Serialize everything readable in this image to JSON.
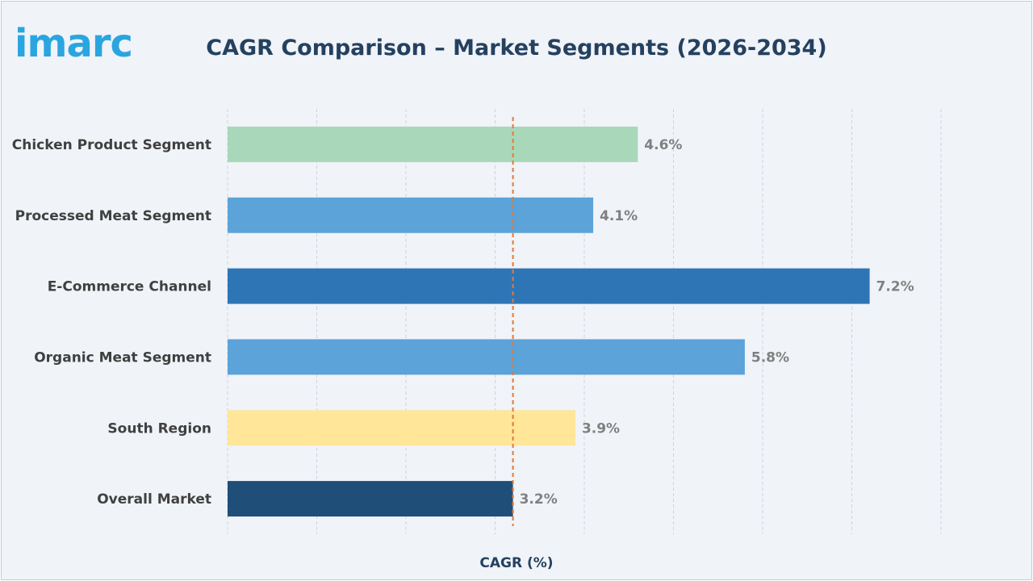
{
  "brand": {
    "logo_text": "imarc"
  },
  "chart_data": {
    "type": "bar",
    "orientation": "horizontal",
    "title": "CAGR Comparison – Market Segments (2026-2034)",
    "xlabel": "CAGR (%)",
    "ylabel": "",
    "categories": [
      "Chicken Product Segment",
      "Processed Meat Segment",
      "E-Commerce Channel",
      "Organic Meat Segment",
      "South Region",
      "Overall Market"
    ],
    "values": [
      4.6,
      4.1,
      7.2,
      5.8,
      3.9,
      3.2
    ],
    "data_labels": [
      "4.6%",
      "4.1%",
      "7.2%",
      "5.8%",
      "3.9%",
      "3.2%"
    ],
    "bar_colors": [
      "#a8d8b9",
      "#5ba3d9",
      "#2e75b6",
      "#5ba3d9",
      "#ffe699",
      "#1f4e79"
    ],
    "xlim": [
      0,
      8
    ],
    "grid": true,
    "reference_line": {
      "value": 3.2,
      "style": "dashed",
      "color": "#e07b39"
    },
    "legend": "none"
  }
}
